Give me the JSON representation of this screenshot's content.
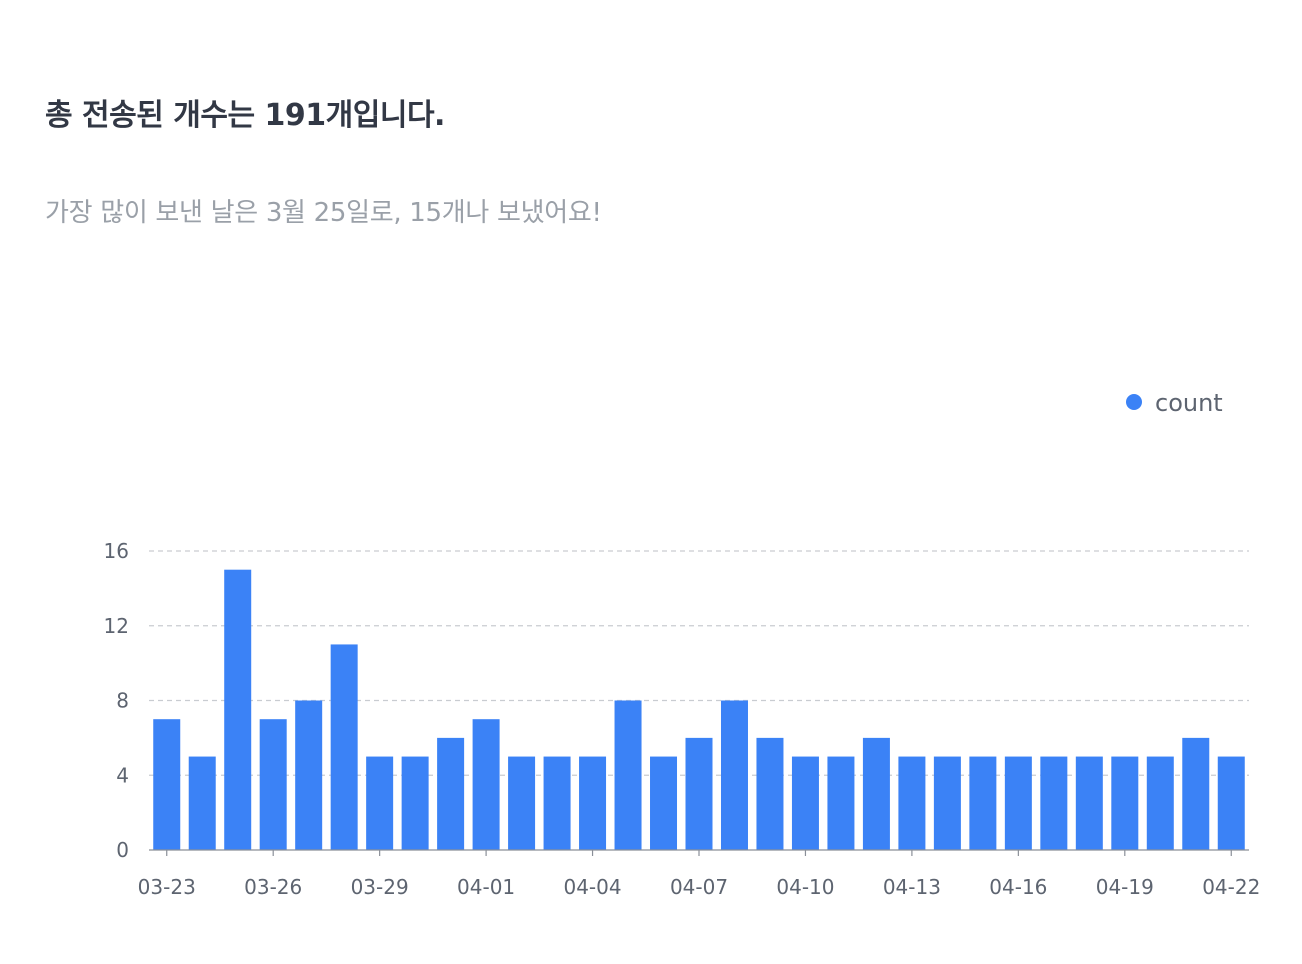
{
  "summary": {
    "headline": "총 전송된 개수는 191개입니다.",
    "subline": "가장 많이 보낸 날은 3월 25일로, 15개나 보냈어요!"
  },
  "colors": {
    "bar": "#3b82f6",
    "grid": "#c9ccd1",
    "axis": "#8a8f98"
  },
  "chart_data": {
    "type": "bar",
    "categories": [
      "03-23",
      "03-24",
      "03-25",
      "03-26",
      "03-27",
      "03-28",
      "03-29",
      "03-30",
      "03-31",
      "04-01",
      "04-02",
      "04-03",
      "04-04",
      "04-05",
      "04-06",
      "04-07",
      "04-08",
      "04-09",
      "04-10",
      "04-11",
      "04-12",
      "04-13",
      "04-14",
      "04-15",
      "04-16",
      "04-17",
      "04-18",
      "04-19",
      "04-20",
      "04-21",
      "04-22"
    ],
    "tick_labels": [
      "03-23",
      "03-26",
      "03-29",
      "04-01",
      "04-04",
      "04-07",
      "04-10",
      "04-13",
      "04-16",
      "04-19",
      "04-22"
    ],
    "series": [
      {
        "name": "count",
        "values": [
          7,
          5,
          15,
          7,
          8,
          11,
          5,
          5,
          6,
          7,
          5,
          5,
          5,
          8,
          5,
          6,
          8,
          6,
          5,
          5,
          6,
          5,
          5,
          5,
          5,
          5,
          5,
          5,
          5,
          6,
          5
        ]
      }
    ],
    "yticks": [
      0,
      4,
      8,
      12,
      16
    ],
    "ylim": [
      0,
      16
    ],
    "grid": "horizontal-dashed",
    "legend_position": "top-right"
  }
}
